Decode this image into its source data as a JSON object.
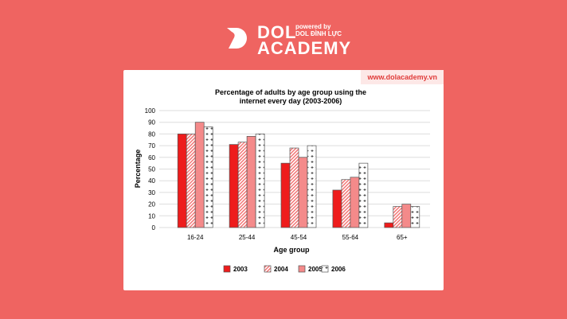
{
  "brand": {
    "name_line1": "DOL",
    "name_line2": "ACADEMY",
    "powered_by": "powered by",
    "powered_name": "DOL ĐÌNH LỰC",
    "website": "www.dolacademy.vn",
    "background": "#ef6461"
  },
  "chart_data": {
    "type": "bar",
    "title_line1": "Percentage of adults by age group using the",
    "title_line2": "internet every day (2003-2006)",
    "xlabel": "Age group",
    "ylabel": "Percentage",
    "ylim": [
      0,
      100
    ],
    "yticks": [
      0,
      10,
      20,
      30,
      40,
      50,
      60,
      70,
      80,
      90,
      100
    ],
    "grid": true,
    "legend_position": "bottom",
    "categories": [
      "16-24",
      "25-44",
      "45-54",
      "55-64",
      "65+"
    ],
    "series": [
      {
        "name": "2003",
        "values": [
          80,
          71,
          55,
          32,
          4
        ],
        "color": "#ee1c1c",
        "pattern": "solid"
      },
      {
        "name": "2004",
        "values": [
          80,
          73,
          68,
          41,
          18
        ],
        "color": "#f7a3a3",
        "pattern": "diagonal-hatch"
      },
      {
        "name": "2005",
        "values": [
          90,
          78,
          60,
          43,
          20
        ],
        "color": "#f48a8a",
        "pattern": "solid"
      },
      {
        "name": "2006",
        "values": [
          86,
          80,
          70,
          55,
          18
        ],
        "color": "#ffffff",
        "pattern": "plus-dots"
      }
    ]
  }
}
